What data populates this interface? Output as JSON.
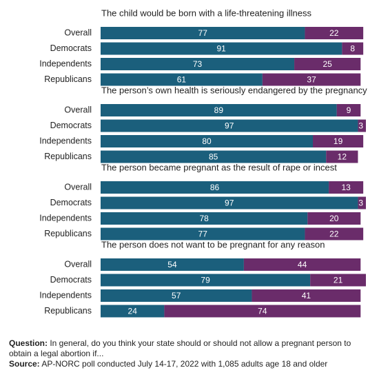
{
  "chart_data": [
    {
      "type": "stacked-bar",
      "title": "The child would be born with a life-threatening illness",
      "categories": [
        "Overall",
        "Democrats",
        "Independents",
        "Republicans"
      ],
      "series": [
        {
          "color": "#1b5f7c",
          "values": [
            77,
            91,
            73,
            61
          ]
        },
        {
          "color": "#6a2c6a",
          "values": [
            22,
            8,
            25,
            37
          ]
        }
      ],
      "xlim": [
        0,
        100
      ]
    },
    {
      "type": "stacked-bar",
      "title": "The person’s own health is seriously endangered by the pregnancy",
      "categories": [
        "Overall",
        "Democrats",
        "Independents",
        "Republicans"
      ],
      "series": [
        {
          "color": "#1b5f7c",
          "values": [
            89,
            97,
            80,
            85
          ]
        },
        {
          "color": "#6a2c6a",
          "values": [
            9,
            3,
            19,
            12
          ]
        }
      ],
      "xlim": [
        0,
        100
      ]
    },
    {
      "type": "stacked-bar",
      "title": "The person became pregnant as the result of rape or incest",
      "categories": [
        "Overall",
        "Democrats",
        "Independents",
        "Republicans"
      ],
      "series": [
        {
          "color": "#1b5f7c",
          "values": [
            86,
            97,
            78,
            77
          ]
        },
        {
          "color": "#6a2c6a",
          "values": [
            13,
            3,
            20,
            22
          ]
        }
      ],
      "xlim": [
        0,
        100
      ]
    },
    {
      "type": "stacked-bar",
      "title": "The person does not want to be pregnant for any reason",
      "categories": [
        "Overall",
        "Democrats",
        "Independents",
        "Republicans"
      ],
      "series": [
        {
          "color": "#1b5f7c",
          "values": [
            54,
            79,
            57,
            24
          ]
        },
        {
          "color": "#6a2c6a",
          "values": [
            44,
            21,
            41,
            74
          ]
        }
      ],
      "xlim": [
        0,
        100
      ]
    }
  ],
  "notes": {
    "question_label": "Question:",
    "question": "In general, do you think your state should or should not allow a pregnant person to obtain a legal abortion if...",
    "source_label": "Source:",
    "source": "AP-NORC poll conducted July 14-17, 2022 with 1,085 adults age 18 and older"
  }
}
